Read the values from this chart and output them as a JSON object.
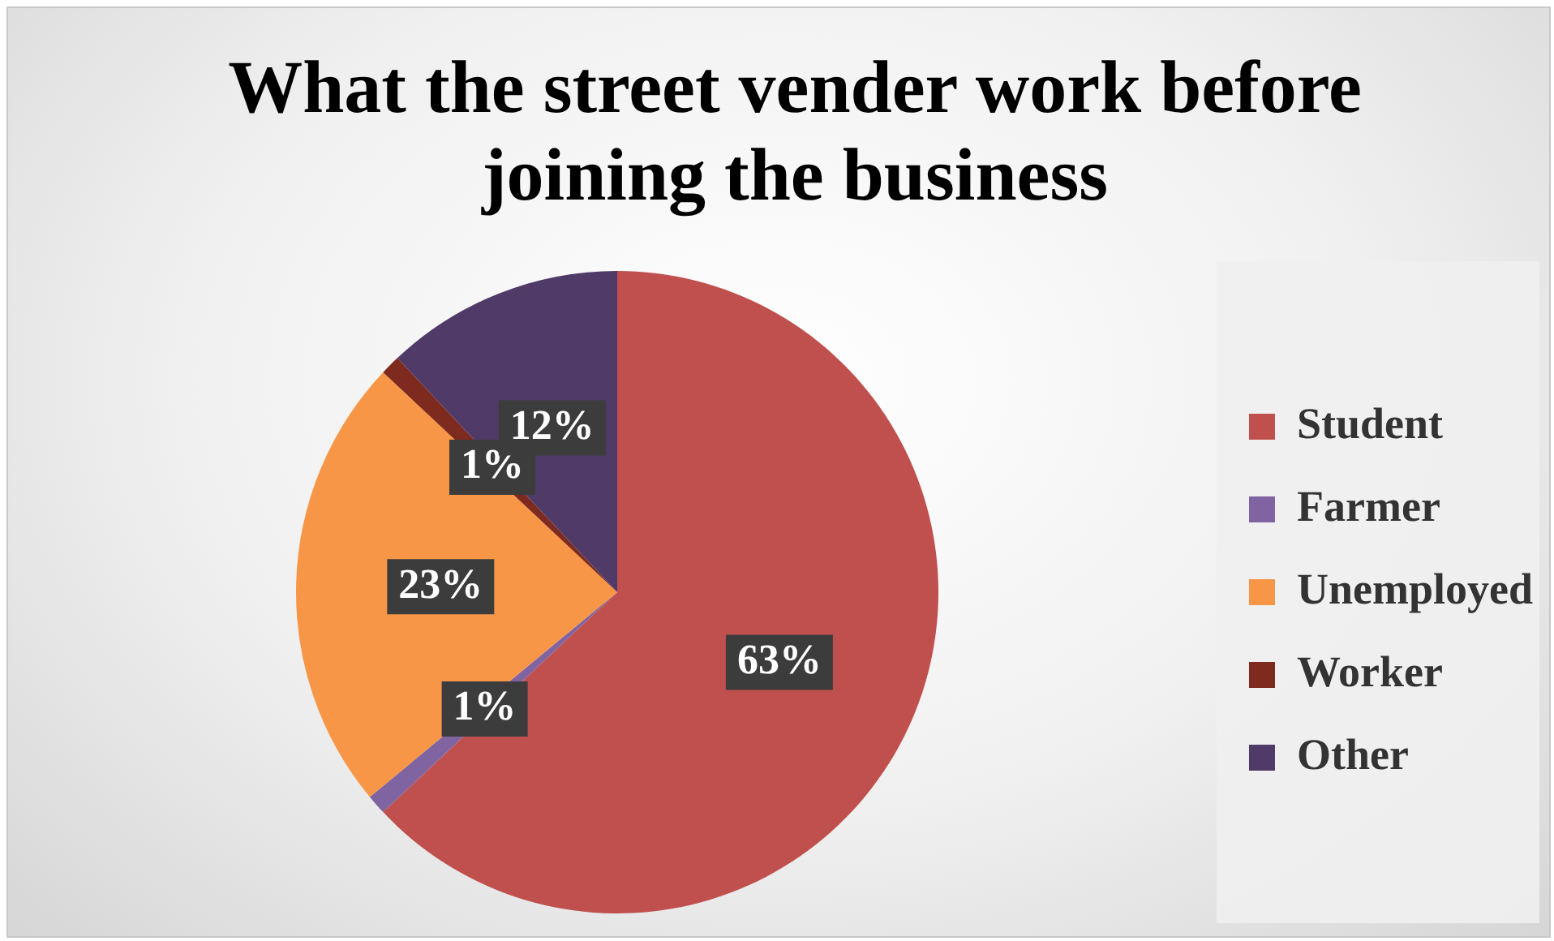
{
  "chart_data": {
    "type": "pie",
    "title": "What the street vender work before joining the business",
    "categories": [
      "Student",
      "Farmer",
      "Unemployed",
      "Worker",
      "Other"
    ],
    "values": [
      63,
      1,
      23,
      1,
      12
    ],
    "colors": [
      "#c0504d",
      "#8064a2",
      "#f79646",
      "#7f2a1e",
      "#4f3a68"
    ],
    "value_labels": [
      "63%",
      "1%",
      "23%",
      "1%",
      "12%"
    ],
    "legend": "right"
  }
}
